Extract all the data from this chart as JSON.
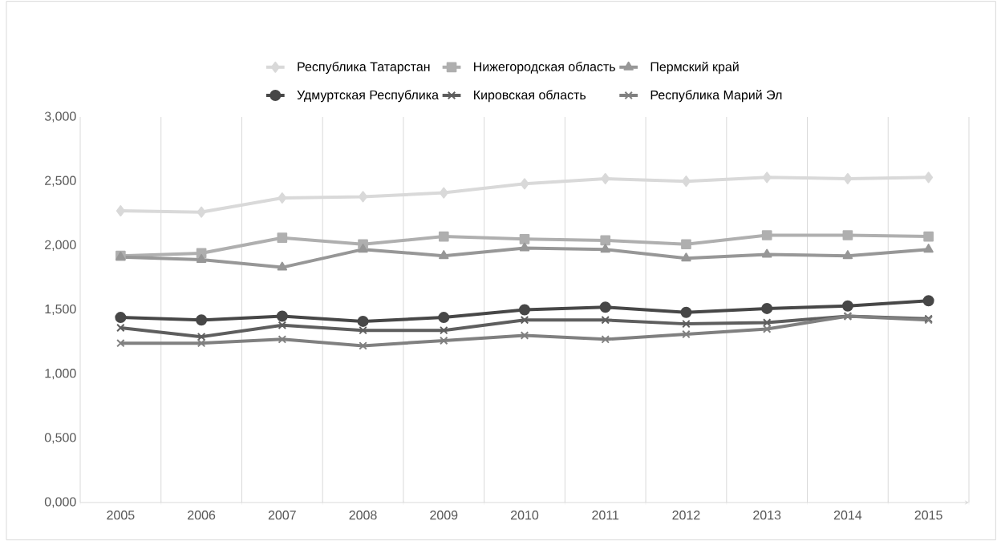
{
  "chart_data": {
    "type": "line",
    "categories": [
      "2005",
      "2006",
      "2007",
      "2008",
      "2009",
      "2010",
      "2011",
      "2012",
      "2013",
      "2014",
      "2015"
    ],
    "series": [
      {
        "name": "Республика Татарстан",
        "color": "#d9d9d9",
        "marker": "diamond",
        "values": [
          2.27,
          2.26,
          2.37,
          2.38,
          2.41,
          2.48,
          2.52,
          2.5,
          2.53,
          2.52,
          2.53
        ]
      },
      {
        "name": "Нижегородская область",
        "color": "#afafaf",
        "marker": "square",
        "values": [
          1.92,
          1.94,
          2.06,
          2.01,
          2.07,
          2.05,
          2.04,
          2.01,
          2.08,
          2.08,
          2.07
        ]
      },
      {
        "name": "Пермский край",
        "color": "#979797",
        "marker": "triangle",
        "values": [
          1.91,
          1.89,
          1.83,
          1.97,
          1.92,
          1.98,
          1.97,
          1.9,
          1.93,
          1.92,
          1.97
        ]
      },
      {
        "name": "Удмуртская Республика",
        "color": "#474747",
        "marker": "circle",
        "values": [
          1.44,
          1.42,
          1.45,
          1.41,
          1.44,
          1.5,
          1.52,
          1.48,
          1.51,
          1.53,
          1.57
        ]
      },
      {
        "name": "Кировская область",
        "color": "#5e5e5e",
        "marker": "cross",
        "values": [
          1.36,
          1.29,
          1.38,
          1.34,
          1.34,
          1.42,
          1.42,
          1.39,
          1.4,
          1.45,
          1.43
        ]
      },
      {
        "name": "Республика Марий Эл",
        "color": "#808080",
        "marker": "cross",
        "values": [
          1.24,
          1.24,
          1.27,
          1.22,
          1.26,
          1.3,
          1.27,
          1.31,
          1.35,
          1.45,
          1.42
        ]
      }
    ],
    "ylim": [
      0,
      3
    ],
    "yticks": [
      {
        "value": 0,
        "label": "0,000"
      },
      {
        "value": 0.5,
        "label": "0,500"
      },
      {
        "value": 1,
        "label": "1,000"
      },
      {
        "value": 1.5,
        "label": "1,500"
      },
      {
        "value": 2,
        "label": "2,000"
      },
      {
        "value": 2.5,
        "label": "2,500"
      },
      {
        "value": 3,
        "label": "3,000"
      }
    ],
    "grid": "x",
    "legend": "top",
    "line_style": "solid"
  }
}
